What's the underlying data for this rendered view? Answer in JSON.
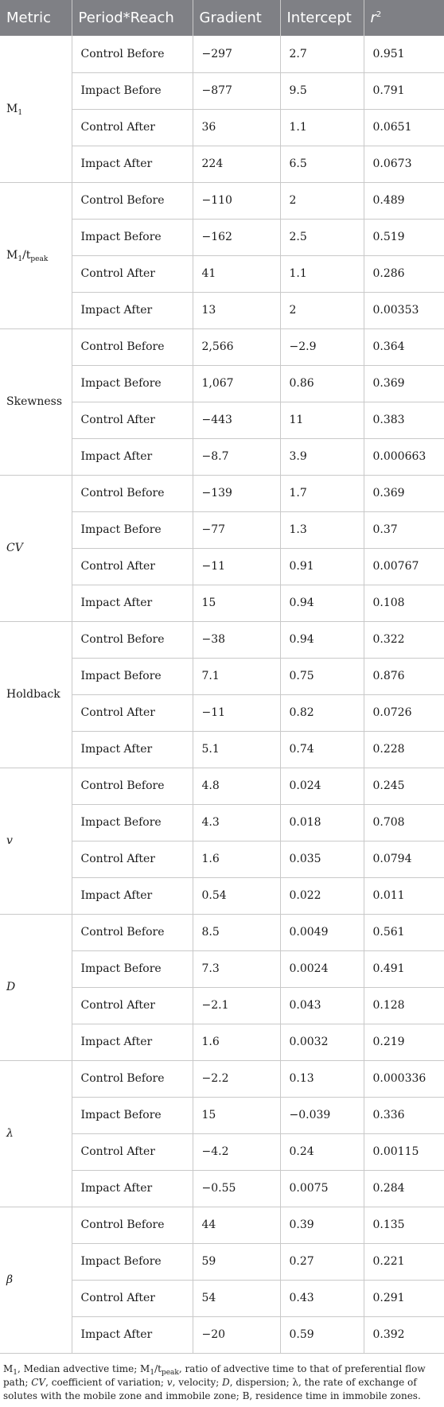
{
  "table": {
    "headers": {
      "metric": "Metric",
      "period_reach": "Period*Reach",
      "gradient": "Gradient",
      "intercept": "Intercept",
      "r2_base": "r",
      "r2_sup": "2"
    },
    "groups": [
      {
        "metric": {
          "base": "M",
          "sub": "1",
          "rest": "",
          "sub2": "",
          "italic": false
        },
        "rows": [
          {
            "period": "Control Before",
            "gradient": "−297",
            "intercept": "2.7",
            "r2": "0.951"
          },
          {
            "period": "Impact Before",
            "gradient": "−877",
            "intercept": "9.5",
            "r2": "0.791"
          },
          {
            "period": "Control After",
            "gradient": "36",
            "intercept": "1.1",
            "r2": "0.0651"
          },
          {
            "period": "Impact After",
            "gradient": "224",
            "intercept": "6.5",
            "r2": "0.0673"
          }
        ]
      },
      {
        "metric": {
          "base": "M",
          "sub": "1",
          "rest": "/t",
          "sub2": "peak",
          "italic": false
        },
        "rows": [
          {
            "period": "Control Before",
            "gradient": "−110",
            "intercept": "2",
            "r2": "0.489"
          },
          {
            "period": "Impact Before",
            "gradient": "−162",
            "intercept": "2.5",
            "r2": "0.519"
          },
          {
            "period": "Control After",
            "gradient": "41",
            "intercept": "1.1",
            "r2": "0.286"
          },
          {
            "period": "Impact After",
            "gradient": "13",
            "intercept": "2",
            "r2": "0.00353"
          }
        ]
      },
      {
        "metric": {
          "base": "Skewness",
          "sub": "",
          "rest": "",
          "sub2": "",
          "italic": false
        },
        "rows": [
          {
            "period": "Control Before",
            "gradient": "2,566",
            "intercept": "−2.9",
            "r2": "0.364"
          },
          {
            "period": "Impact Before",
            "gradient": "1,067",
            "intercept": "0.86",
            "r2": "0.369"
          },
          {
            "period": "Control After",
            "gradient": "−443",
            "intercept": "11",
            "r2": "0.383"
          },
          {
            "period": "Impact After",
            "gradient": "−8.7",
            "intercept": "3.9",
            "r2": "0.000663"
          }
        ]
      },
      {
        "metric": {
          "base": "CV",
          "sub": "",
          "rest": "",
          "sub2": "",
          "italic": true
        },
        "rows": [
          {
            "period": "Control Before",
            "gradient": "−139",
            "intercept": "1.7",
            "r2": "0.369"
          },
          {
            "period": "Impact Before",
            "gradient": "−77",
            "intercept": "1.3",
            "r2": "0.37"
          },
          {
            "period": "Control After",
            "gradient": "−11",
            "intercept": "0.91",
            "r2": "0.00767"
          },
          {
            "period": "Impact After",
            "gradient": "15",
            "intercept": "0.94",
            "r2": "0.108"
          }
        ]
      },
      {
        "metric": {
          "base": "Holdback",
          "sub": "",
          "rest": "",
          "sub2": "",
          "italic": false
        },
        "rows": [
          {
            "period": "Control Before",
            "gradient": "−38",
            "intercept": "0.94",
            "r2": "0.322"
          },
          {
            "period": "Impact Before",
            "gradient": "7.1",
            "intercept": "0.75",
            "r2": "0.876"
          },
          {
            "period": "Control After",
            "gradient": "−11",
            "intercept": "0.82",
            "r2": "0.0726"
          },
          {
            "period": "Impact After",
            "gradient": "5.1",
            "intercept": "0.74",
            "r2": "0.228"
          }
        ]
      },
      {
        "metric": {
          "base": "v",
          "sub": "",
          "rest": "",
          "sub2": "",
          "italic": true
        },
        "rows": [
          {
            "period": "Control Before",
            "gradient": "4.8",
            "intercept": "0.024",
            "r2": "0.245"
          },
          {
            "period": "Impact Before",
            "gradient": "4.3",
            "intercept": "0.018",
            "r2": "0.708"
          },
          {
            "period": "Control After",
            "gradient": "1.6",
            "intercept": "0.035",
            "r2": "0.0794"
          },
          {
            "period": "Impact After",
            "gradient": "0.54",
            "intercept": "0.022",
            "r2": "0.011"
          }
        ]
      },
      {
        "metric": {
          "base": "D",
          "sub": "",
          "rest": "",
          "sub2": "",
          "italic": true
        },
        "rows": [
          {
            "period": "Control Before",
            "gradient": "8.5",
            "intercept": "0.0049",
            "r2": "0.561"
          },
          {
            "period": "Impact Before",
            "gradient": "7.3",
            "intercept": "0.0024",
            "r2": "0.491"
          },
          {
            "period": "Control After",
            "gradient": "−2.1",
            "intercept": "0.043",
            "r2": "0.128"
          },
          {
            "period": "Impact After",
            "gradient": "1.6",
            "intercept": "0.0032",
            "r2": "0.219"
          }
        ]
      },
      {
        "metric": {
          "base": "λ",
          "sub": "",
          "rest": "",
          "sub2": "",
          "italic": true
        },
        "rows": [
          {
            "period": "Control Before",
            "gradient": "−2.2",
            "intercept": "0.13",
            "r2": "0.000336"
          },
          {
            "period": "Impact Before",
            "gradient": "15",
            "intercept": "−0.039",
            "r2": "0.336"
          },
          {
            "period": "Control After",
            "gradient": "−4.2",
            "intercept": "0.24",
            "r2": "0.00115"
          },
          {
            "period": "Impact After",
            "gradient": "−0.55",
            "intercept": "0.0075",
            "r2": "0.284"
          }
        ]
      },
      {
        "metric": {
          "base": "β",
          "sub": "",
          "rest": "",
          "sub2": "",
          "italic": true
        },
        "rows": [
          {
            "period": "Control Before",
            "gradient": "44",
            "intercept": "0.39",
            "r2": "0.135"
          },
          {
            "period": "Impact Before",
            "gradient": "59",
            "intercept": "0.27",
            "r2": "0.221"
          },
          {
            "period": "Control After",
            "gradient": "54",
            "intercept": "0.43",
            "r2": "0.291"
          },
          {
            "period": "Impact After",
            "gradient": "−20",
            "intercept": "0.59",
            "r2": "0.392"
          }
        ]
      }
    ]
  },
  "footnote": {
    "m1": "M",
    "m1_sub": "1",
    "s1": ", Median advective time; M",
    "m2_sub": "1",
    "s2": "/t",
    "peak_sub": "peak",
    "s3": ", ratio of advective time to that of preferential flow path; ",
    "cv": "CV",
    "s4": ", coefficient of variation; ",
    "v": "v",
    "s5": ", velocity; ",
    "d": "D",
    "s6": ", dispersion; λ, the rate of exchange of solutes with the mobile zone and immobile zone; B, residence time in immobile zones."
  },
  "colors": {
    "header_bg": "#7f8085",
    "header_text": "#ffffff",
    "grid": "#c9c9c9",
    "body_text": "#1a1a1a"
  }
}
